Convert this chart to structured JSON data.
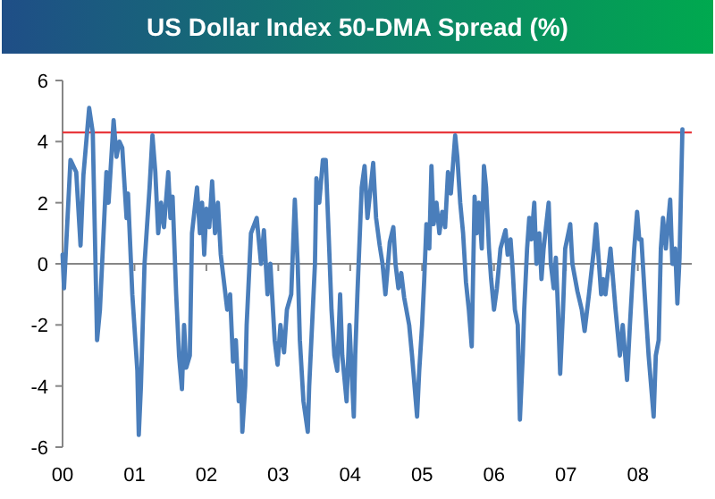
{
  "chart_data": {
    "type": "line",
    "title": "US Dollar Index 50-DMA Spread (%)",
    "xlim": [
      2000,
      2008.75
    ],
    "xticks": [
      {
        "value": 2000,
        "label": "00"
      },
      {
        "value": 2001,
        "label": "01"
      },
      {
        "value": 2002,
        "label": "02"
      },
      {
        "value": 2003,
        "label": "03"
      },
      {
        "value": 2004,
        "label": "04"
      },
      {
        "value": 2005,
        "label": "05"
      },
      {
        "value": 2006,
        "label": "06"
      },
      {
        "value": 2007,
        "label": "07"
      },
      {
        "value": 2008,
        "label": "08"
      }
    ],
    "ylim": [
      -6,
      6
    ],
    "yticks": [
      -6,
      -4,
      -2,
      0,
      2,
      4,
      6
    ],
    "marker": "none",
    "line_style": "solid",
    "ref_lines": [
      {
        "axis": "y",
        "value": 4.3,
        "color": "#e8383d"
      }
    ],
    "series": [
      {
        "color": "#4a7ebb",
        "x": [
          2000.0,
          2000.02,
          2000.11,
          2000.19,
          2000.25,
          2000.29,
          2000.37,
          2000.42,
          2000.48,
          2000.52,
          2000.61,
          2000.64,
          2000.71,
          2000.75,
          2000.79,
          2000.83,
          2000.89,
          2000.91,
          2000.97,
          2001.04,
          2001.06,
          2001.09,
          2001.14,
          2001.21,
          2001.25,
          2001.29,
          2001.33,
          2001.37,
          2001.41,
          2001.47,
          2001.5,
          2001.53,
          2001.58,
          2001.62,
          2001.66,
          2001.69,
          2001.72,
          2001.77,
          2001.8,
          2001.87,
          2001.91,
          2001.94,
          2001.97,
          2002.0,
          2002.04,
          2002.08,
          2002.12,
          2002.16,
          2002.2,
          2002.29,
          2002.33,
          2002.37,
          2002.41,
          2002.45,
          2002.48,
          2002.5,
          2002.54,
          2002.56,
          2002.62,
          2002.7,
          2002.76,
          2002.8,
          2002.85,
          2002.89,
          2002.95,
          2002.99,
          2003.03,
          2003.08,
          2003.12,
          2003.18,
          2003.23,
          2003.27,
          2003.3,
          2003.35,
          2003.41,
          2003.43,
          2003.47,
          2003.51,
          2003.53,
          2003.57,
          2003.62,
          2003.66,
          2003.7,
          2003.74,
          2003.78,
          2003.82,
          2003.86,
          2003.89,
          2003.95,
          2003.99,
          2004.05,
          2004.07,
          2004.1,
          2004.16,
          2004.2,
          2004.24,
          2004.32,
          2004.36,
          2004.41,
          2004.45,
          2004.49,
          2004.55,
          2004.6,
          2004.63,
          2004.67,
          2004.71,
          2004.75,
          2004.82,
          2004.86,
          2004.93,
          2004.96,
          2005.0,
          2005.03,
          2005.06,
          2005.1,
          2005.13,
          2005.16,
          2005.2,
          2005.24,
          2005.28,
          2005.32,
          2005.36,
          2005.4,
          2005.46,
          2005.49,
          2005.53,
          2005.57,
          2005.61,
          2005.65,
          2005.69,
          2005.73,
          2005.76,
          2005.79,
          2005.83,
          2005.86,
          2005.89,
          2005.93,
          2005.96,
          2006.0,
          2006.04,
          2006.09,
          2006.16,
          2006.19,
          2006.23,
          2006.26,
          2006.29,
          2006.33,
          2006.36,
          2006.4,
          2006.42,
          2006.46,
          2006.49,
          2006.52,
          2006.56,
          2006.59,
          2006.63,
          2006.66,
          2006.69,
          2006.76,
          2006.79,
          2006.83,
          2006.86,
          2006.89,
          2006.92,
          2006.96,
          2006.99,
          2007.06,
          2007.09,
          2007.16,
          2007.22,
          2007.26,
          2007.32,
          2007.39,
          2007.42,
          2007.46,
          2007.49,
          2007.52,
          2007.55,
          2007.62,
          2007.69,
          2007.75,
          2007.79,
          2007.85,
          2007.89,
          2007.95,
          2007.99,
          2008.02,
          2008.05,
          2008.09,
          2008.15,
          2008.22,
          2008.25,
          2008.29,
          2008.32,
          2008.35,
          2008.39,
          2008.45,
          2008.48,
          2008.52,
          2008.55,
          2008.58,
          2008.62
        ],
        "values": [
          0.3,
          -0.8,
          3.4,
          3.0,
          0.6,
          2.9,
          5.1,
          4.3,
          -2.5,
          -1.5,
          3.0,
          2.0,
          4.7,
          3.5,
          4.0,
          3.8,
          1.5,
          2.3,
          -1.0,
          -3.5,
          -5.6,
          -4.0,
          0,
          2.5,
          4.2,
          3.0,
          1.0,
          2.0,
          1.2,
          3.0,
          1.5,
          2.2,
          -1.0,
          -3.0,
          -4.1,
          -2.0,
          -3.4,
          -3.0,
          1.0,
          2.5,
          1.0,
          2.0,
          0.3,
          1.8,
          1.2,
          2.7,
          1.0,
          2.0,
          0.3,
          -1.5,
          -1.0,
          -3.2,
          -2.5,
          -4.5,
          -3.5,
          -5.5,
          -4.0,
          -2.0,
          1.0,
          1.5,
          0,
          1.1,
          -1.0,
          0,
          -2.5,
          -3.3,
          -2.0,
          -2.9,
          -1.5,
          -1.0,
          2.1,
          0,
          -2.5,
          -4.5,
          -5.5,
          -4.0,
          -2.0,
          0,
          2.8,
          2.0,
          3.4,
          3.4,
          1.0,
          -1.5,
          -3.0,
          -3.5,
          -1.0,
          -3.0,
          -4.5,
          -2.0,
          -5.0,
          -3.0,
          -1.0,
          2.5,
          3.2,
          1.5,
          3.3,
          1.5,
          0.6,
          0,
          -1.0,
          0.7,
          1.2,
          0,
          -0.8,
          -0.3,
          -1.1,
          -2.0,
          -3.0,
          -5.0,
          -3.5,
          -2.0,
          -0.5,
          1.3,
          0.5,
          3.2,
          1.3,
          2.0,
          1.0,
          1.7,
          1.2,
          3.0,
          2.3,
          4.2,
          3.5,
          2.0,
          1.0,
          -0.6,
          -1.5,
          -2.7,
          2.2,
          1.0,
          2.0,
          0.5,
          3.2,
          2.5,
          0.5,
          -0.5,
          -1.5,
          -0.8,
          0.5,
          1.1,
          0.3,
          0.8,
          -0.2,
          -1.5,
          -2.0,
          -5.1,
          -3.0,
          -1.5,
          0.5,
          1.5,
          0.8,
          2.0,
          0,
          1.0,
          -0.5,
          0.5,
          2.0,
          0,
          -0.8,
          0.2,
          -1.5,
          -3.6,
          -1.5,
          0.5,
          1.3,
          0,
          -0.9,
          -1.5,
          -2.2,
          -1.0,
          0.5,
          1.3,
          0,
          -1.0,
          -0.5,
          -1.0,
          0.5,
          -1.5,
          -3.0,
          -2.0,
          -3.8,
          -2.0,
          0.5,
          1.7,
          0.8,
          0.8,
          -0.8,
          -3.0,
          -5.0,
          -3.0,
          -2.5,
          0.5,
          1.5,
          0.5,
          2.1,
          0,
          0.5,
          -1.3,
          0.2,
          4.4
        ]
      }
    ]
  }
}
